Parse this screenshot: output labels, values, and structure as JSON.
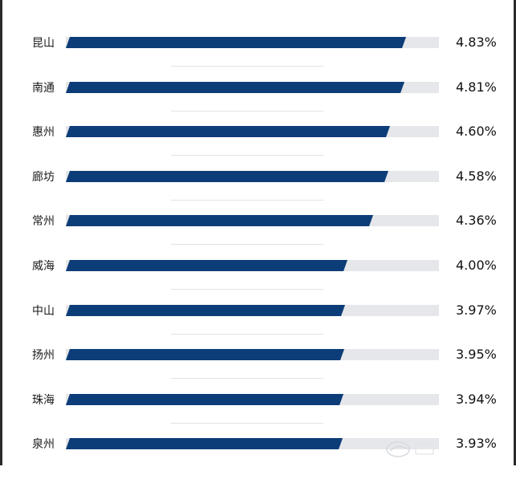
{
  "colors": {
    "bar": "#0d3d78",
    "track": "#e6e7ea"
  },
  "chart_data": {
    "type": "bar",
    "orientation": "horizontal",
    "title": "",
    "xlabel": "",
    "ylabel": "",
    "xlim": [
      0,
      5.3
    ],
    "categories": [
      "昆山",
      "南通",
      "惠州",
      "廊坊",
      "常州",
      "威海",
      "中山",
      "扬州",
      "珠海",
      "泉州"
    ],
    "values": [
      4.83,
      4.81,
      4.6,
      4.58,
      4.36,
      4.0,
      3.97,
      3.95,
      3.94,
      3.93
    ],
    "value_labels": [
      "4.83%",
      "4.81%",
      "4.60%",
      "4.58%",
      "4.36%",
      "4.00%",
      "3.97%",
      "3.95%",
      "3.94%",
      "3.93%"
    ],
    "grid": false,
    "legend": "none"
  }
}
